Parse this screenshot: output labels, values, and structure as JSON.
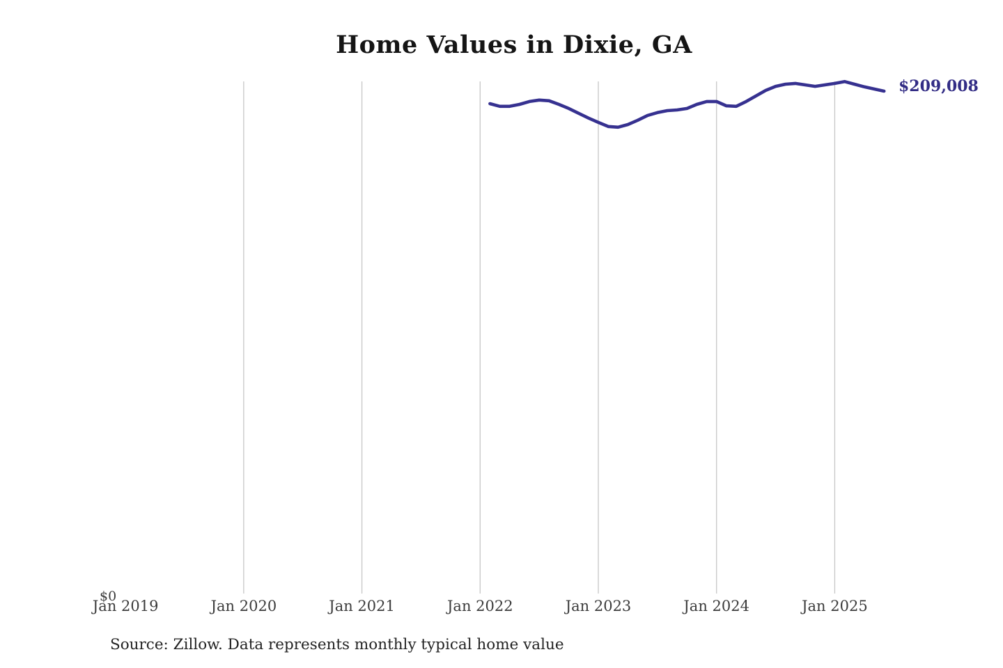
{
  "page": {
    "title": "Home Values in Dixie, GA",
    "source_note": "Source: Zillow. Data represents monthly typical home value",
    "y_zero_label": "$0",
    "end_value_label": "$209,008"
  },
  "colors": {
    "line": "#363190",
    "end_label": "#322c85",
    "gridline": "#c6c6c6",
    "axis_text": "#3b3b3b",
    "title_text": "#151515"
  },
  "chart_data": {
    "type": "line",
    "title": "Home Values in Dixie, GA",
    "xlabel": "",
    "ylabel": "",
    "grid": "vertical",
    "legend_position": "none",
    "ylim": [
      0,
      246000
    ],
    "x_tick_labels": [
      "Jan 2019",
      "Jan 2020",
      "Jan 2021",
      "Jan 2022",
      "Jan 2023",
      "Jan 2024",
      "Jan 2025"
    ],
    "gridline_ticks": [
      "Jan 2020",
      "Jan 2021",
      "Jan 2022",
      "Jan 2023",
      "Jan 2024",
      "Jan 2025"
    ],
    "y_axis_min_label": "$0",
    "end_annotation": {
      "label": "$209,008",
      "value": 209008
    },
    "series": [
      {
        "name": "Monthly typical home value",
        "color": "#363190",
        "x": [
          "Feb 2022",
          "Mar 2022",
          "Apr 2022",
          "May 2022",
          "Jun 2022",
          "Jul 2022",
          "Aug 2022",
          "Sep 2022",
          "Oct 2022",
          "Nov 2022",
          "Dec 2022",
          "Jan 2023",
          "Feb 2023",
          "Mar 2023",
          "Apr 2023",
          "May 2023",
          "Jun 2023",
          "Jul 2023",
          "Aug 2023",
          "Sep 2023",
          "Oct 2023",
          "Nov 2023",
          "Dec 2023",
          "Jan 2024",
          "Feb 2024",
          "Mar 2024",
          "Apr 2024",
          "May 2024",
          "Jun 2024",
          "Jul 2024",
          "Aug 2024",
          "Sep 2024",
          "Oct 2024",
          "Nov 2024",
          "Dec 2024",
          "Jan 2025",
          "Feb 2025",
          "Mar 2025",
          "Apr 2025",
          "May 2025",
          "Jun 2025"
        ],
        "values": [
          203800,
          202700,
          202700,
          203500,
          204700,
          205300,
          205000,
          203500,
          201800,
          199800,
          197800,
          196000,
          194300,
          194000,
          195100,
          196900,
          198900,
          200100,
          200900,
          201200,
          201800,
          203500,
          204700,
          204700,
          202900,
          202700,
          204700,
          207000,
          209300,
          211000,
          211900,
          212200,
          211600,
          211000,
          211600,
          212200,
          213000,
          211900,
          210800,
          209900,
          209008
        ]
      }
    ]
  },
  "layout_note": "values are USD typical home value; line spans Feb 2022 - Jun 2025"
}
